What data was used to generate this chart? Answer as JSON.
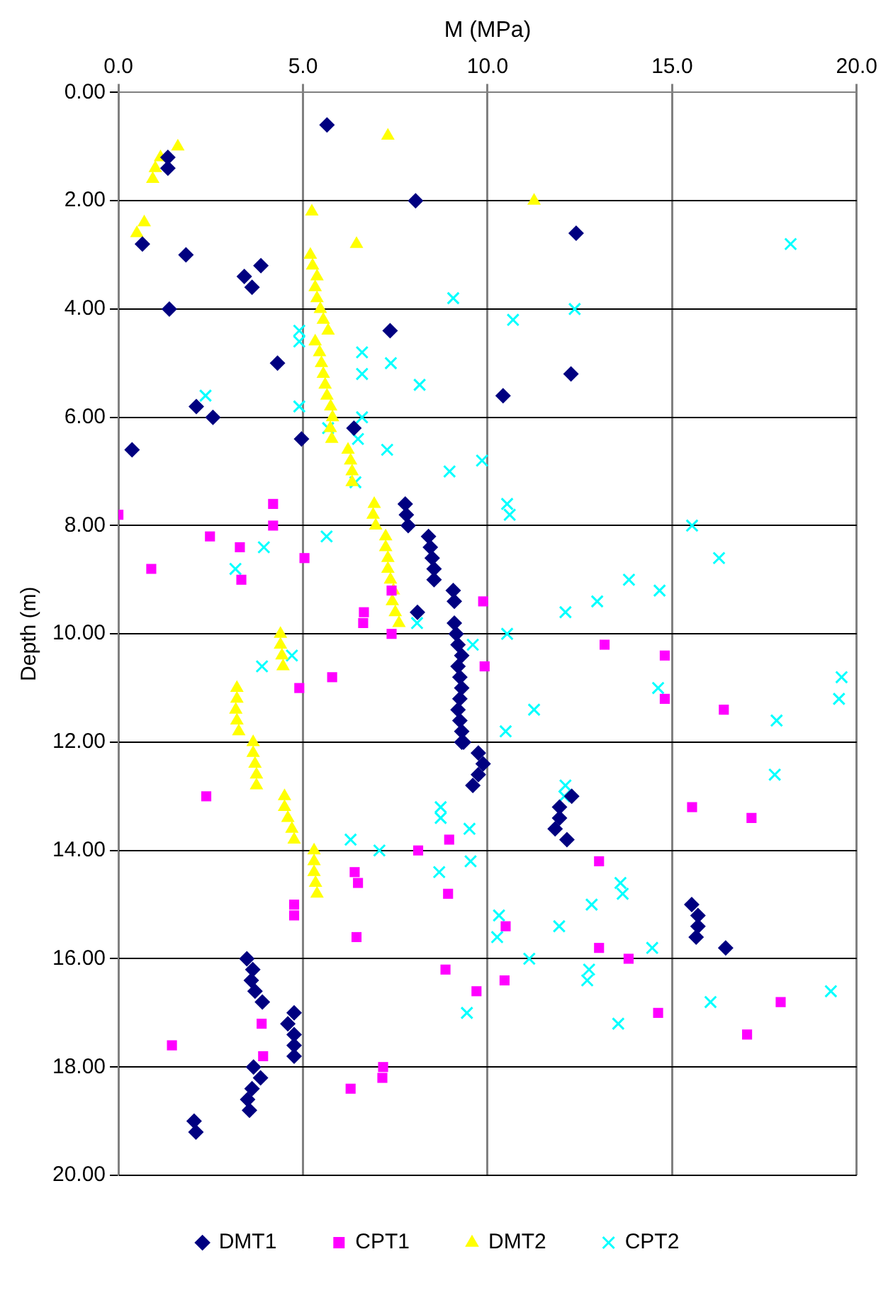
{
  "chart_data": {
    "type": "scatter",
    "xlabel": "M (MPa)",
    "ylabel": "Depth (m)",
    "xlim": [
      0,
      20
    ],
    "xticks": [
      {
        "value": 0,
        "label": "0.0"
      },
      {
        "value": 5,
        "label": "5.0"
      },
      {
        "value": 10,
        "label": "10.0"
      },
      {
        "value": 15,
        "label": "15.0"
      },
      {
        "value": 20,
        "label": "20.0"
      }
    ],
    "ylim": [
      20,
      0
    ],
    "yticks": [
      {
        "value": 0,
        "label": "0.00"
      },
      {
        "value": 2,
        "label": "2.00"
      },
      {
        "value": 4,
        "label": "4.00"
      },
      {
        "value": 6,
        "label": "6.00"
      },
      {
        "value": 8,
        "label": "8.00"
      },
      {
        "value": 10,
        "label": "10.00"
      },
      {
        "value": 12,
        "label": "12.00"
      },
      {
        "value": 14,
        "label": "14.00"
      },
      {
        "value": 16,
        "label": "16.00"
      },
      {
        "value": 18,
        "label": "18.00"
      },
      {
        "value": 20,
        "label": "20.00"
      }
    ],
    "grid": true,
    "legend": "bottom",
    "series": [
      {
        "name": "DMT1",
        "color": "#000080",
        "marker": "diamond",
        "x": [
          5.65,
          1.34,
          1.34,
          8.05,
          12.4,
          0.65,
          1.83,
          3.86,
          3.41,
          3.62,
          1.38,
          7.36,
          4.31,
          12.26,
          10.42,
          2.11,
          2.56,
          6.38,
          4.96,
          0.37,
          7.77,
          7.8,
          7.85,
          8.4,
          8.45,
          8.5,
          8.55,
          8.55,
          9.07,
          9.1,
          8.1,
          9.1,
          9.15,
          9.2,
          9.3,
          9.2,
          9.25,
          9.3,
          9.25,
          9.2,
          9.25,
          9.3,
          9.35,
          9.3,
          9.75,
          9.88,
          9.75,
          9.6,
          12.28,
          11.95,
          11.95,
          11.83,
          12.15,
          15.53,
          15.7,
          15.7,
          15.65,
          16.45,
          3.48,
          3.64,
          3.6,
          3.7,
          3.9,
          4.76,
          4.59,
          4.76,
          4.76,
          4.76,
          3.66,
          3.85,
          3.62,
          3.5,
          3.55,
          2.05,
          2.1
        ],
        "values": [
          0.6,
          1.2,
          1.4,
          2.0,
          2.6,
          2.8,
          3.0,
          3.2,
          3.4,
          3.6,
          4.0,
          4.4,
          5.0,
          5.2,
          5.6,
          5.8,
          6.0,
          6.2,
          6.4,
          6.6,
          7.6,
          7.8,
          8.0,
          8.2,
          8.4,
          8.6,
          8.8,
          9.0,
          9.2,
          9.4,
          9.6,
          9.8,
          10.0,
          10.2,
          10.4,
          10.6,
          10.8,
          11.0,
          11.2,
          11.4,
          11.6,
          11.8,
          12.0,
          12.0,
          12.2,
          12.4,
          12.6,
          12.8,
          13.0,
          13.2,
          13.4,
          13.6,
          13.8,
          15.0,
          15.2,
          15.4,
          15.6,
          15.8,
          16.0,
          16.2,
          16.4,
          16.6,
          16.8,
          17.0,
          17.2,
          17.4,
          17.6,
          17.8,
          18.0,
          18.2,
          18.4,
          18.6,
          18.8,
          19.0,
          19.2
        ]
      },
      {
        "name": "CPT1",
        "color": "#ff00ff",
        "marker": "square",
        "x": [
          0.0,
          4.19,
          4.19,
          2.48,
          3.29,
          0.89,
          3.33,
          5.04,
          7.4,
          6.65,
          6.63,
          7.4,
          9.88,
          5.79,
          4.9,
          2.38,
          4.76,
          4.76,
          6.45,
          6.4,
          6.49,
          8.12,
          8.96,
          8.93,
          8.86,
          9.7,
          3.88,
          3.92,
          1.45,
          7.17,
          7.15,
          6.29,
          13.17,
          14.8,
          9.92,
          14.8,
          16.4,
          15.54,
          17.15,
          13.02,
          10.49,
          13.02,
          13.82,
          10.46,
          14.62,
          17.94,
          17.03
        ],
        "values": [
          7.8,
          7.6,
          8.0,
          8.2,
          8.4,
          8.8,
          9.0,
          8.6,
          9.2,
          9.6,
          9.8,
          10.0,
          9.4,
          10.8,
          11.0,
          13.0,
          15.0,
          15.2,
          15.6,
          14.4,
          14.6,
          14.0,
          13.8,
          14.8,
          16.2,
          16.6,
          17.2,
          17.8,
          17.6,
          18.0,
          18.2,
          18.4,
          10.2,
          10.4,
          10.6,
          11.2,
          11.4,
          13.2,
          13.4,
          14.2,
          15.4,
          15.8,
          16.0,
          16.4,
          17.0,
          16.8,
          17.4
        ]
      },
      {
        "name": "DMT2",
        "color": "#ffff00",
        "marker": "triangle",
        "x": [
          7.3,
          1.61,
          1.14,
          1.0,
          0.93,
          0.7,
          0.5,
          5.24,
          6.45,
          11.26,
          5.2,
          5.26,
          5.38,
          5.33,
          5.38,
          5.47,
          5.55,
          5.68,
          5.33,
          5.45,
          5.5,
          5.55,
          5.6,
          5.65,
          5.75,
          5.8,
          5.74,
          5.78,
          6.22,
          6.29,
          6.33,
          6.33,
          6.93,
          6.9,
          6.97,
          7.24,
          7.24,
          7.3,
          7.3,
          7.37,
          7.45,
          7.42,
          7.5,
          7.6,
          4.39,
          4.39,
          4.43,
          4.46,
          3.21,
          3.21,
          3.18,
          3.21,
          3.26,
          3.65,
          3.65,
          3.7,
          3.74,
          3.74,
          4.5,
          4.5,
          4.59,
          4.7,
          4.76,
          5.3,
          5.3,
          5.3,
          5.34,
          5.38
        ],
        "values": [
          0.8,
          1.0,
          1.2,
          1.4,
          1.6,
          2.4,
          2.6,
          2.2,
          2.8,
          2.0,
          3.0,
          3.2,
          3.4,
          3.6,
          3.8,
          4.0,
          4.2,
          4.4,
          4.6,
          4.8,
          5.0,
          5.2,
          5.4,
          5.6,
          5.8,
          6.0,
          6.2,
          6.4,
          6.6,
          6.8,
          7.0,
          7.2,
          7.6,
          7.8,
          8.0,
          8.2,
          8.4,
          8.6,
          8.8,
          9.0,
          9.2,
          9.4,
          9.6,
          9.8,
          10.0,
          10.2,
          10.4,
          10.6,
          11.0,
          11.2,
          11.4,
          11.6,
          11.8,
          12.0,
          12.2,
          12.4,
          12.6,
          12.8,
          13.0,
          13.2,
          13.4,
          13.6,
          13.8,
          14.0,
          14.2,
          14.4,
          14.6,
          14.8
        ]
      },
      {
        "name": "CPT2",
        "color": "#00ffff",
        "marker": "cross",
        "x": [
          18.21,
          9.07,
          10.69,
          12.36,
          4.9,
          4.9,
          6.6,
          7.38,
          6.6,
          8.16,
          2.36,
          4.9,
          6.6,
          5.68,
          6.49,
          7.28,
          9.85,
          8.97,
          6.42,
          10.53,
          10.6,
          15.54,
          16.27,
          13.83,
          14.66,
          12.97,
          12.11,
          10.53,
          3.94,
          3.17,
          5.64,
          8.09,
          3.89,
          4.7,
          6.29,
          7.07,
          8.73,
          8.73,
          9.51,
          8.69,
          9.54,
          9.6,
          14.62,
          11.26,
          10.49,
          19.59,
          19.52,
          17.83,
          17.78,
          12.11,
          12.08,
          13.6,
          13.66,
          12.82,
          10.31,
          10.26,
          11.94,
          11.13,
          14.46,
          12.75,
          12.7,
          9.44,
          13.54,
          16.04,
          19.3
        ],
        "values": [
          2.8,
          3.8,
          4.2,
          4.0,
          4.4,
          4.6,
          4.8,
          5.0,
          5.2,
          5.4,
          5.6,
          5.8,
          6.0,
          6.2,
          6.4,
          6.6,
          6.8,
          7.0,
          7.2,
          7.6,
          7.8,
          8.0,
          8.6,
          9.0,
          9.2,
          9.4,
          9.6,
          10.0,
          8.4,
          8.8,
          8.2,
          9.8,
          10.6,
          10.4,
          13.8,
          14.0,
          13.2,
          13.4,
          13.6,
          14.4,
          14.2,
          10.2,
          11.0,
          11.4,
          11.8,
          10.8,
          11.2,
          11.6,
          12.6,
          12.8,
          13.0,
          14.6,
          14.8,
          15.0,
          15.2,
          15.6,
          15.4,
          16.0,
          15.8,
          16.2,
          16.4,
          17.0,
          17.2,
          16.8,
          16.6
        ]
      }
    ]
  }
}
